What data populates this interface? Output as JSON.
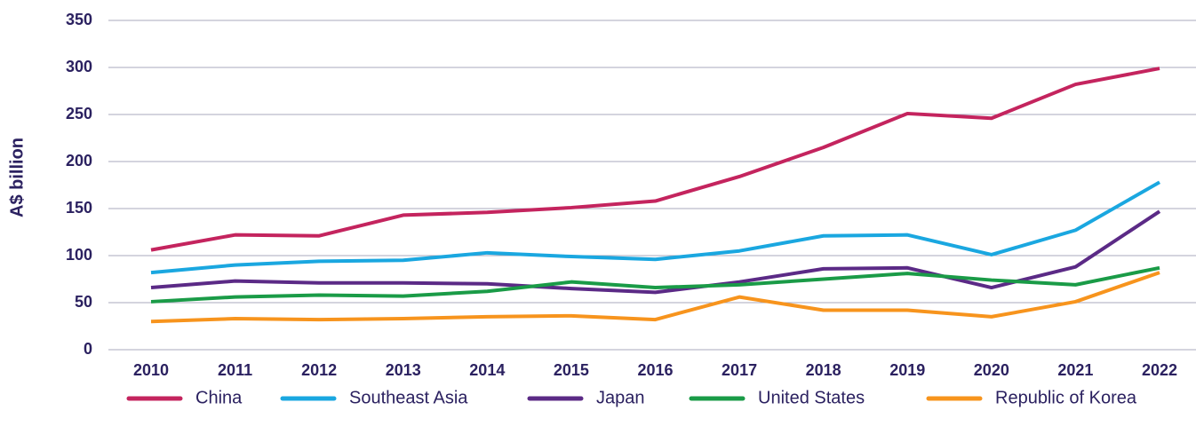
{
  "chart_data": {
    "type": "line",
    "ylabel": "A$ billion",
    "categories": [
      "2010",
      "2011",
      "2012",
      "2013",
      "2014",
      "2015",
      "2016",
      "2017",
      "2018",
      "2019",
      "2020",
      "2021",
      "2022"
    ],
    "ylim": [
      0,
      350
    ],
    "yticks": [
      0,
      50,
      100,
      150,
      200,
      250,
      300,
      350
    ],
    "grid": true,
    "legend": "bottom",
    "series": [
      {
        "name": "China",
        "color": "#c4245e",
        "values": [
          106,
          122,
          121,
          143,
          146,
          151,
          158,
          184,
          215,
          251,
          246,
          282,
          299
        ]
      },
      {
        "name": "Southeast Asia",
        "color": "#1aa7e0",
        "values": [
          82,
          90,
          94,
          95,
          103,
          99,
          96,
          105,
          121,
          122,
          101,
          127,
          178
        ]
      },
      {
        "name": "Japan",
        "color": "#5b2a86",
        "values": [
          66,
          73,
          71,
          71,
          70,
          65,
          61,
          72,
          86,
          87,
          66,
          88,
          147
        ]
      },
      {
        "name": "United States",
        "color": "#1a9b47",
        "values": [
          51,
          56,
          58,
          57,
          62,
          72,
          66,
          69,
          75,
          81,
          74,
          69,
          87
        ]
      },
      {
        "name": "Republic of Korea",
        "color": "#f7941d",
        "values": [
          30,
          33,
          32,
          33,
          35,
          36,
          32,
          56,
          42,
          42,
          35,
          51,
          82
        ]
      }
    ]
  }
}
